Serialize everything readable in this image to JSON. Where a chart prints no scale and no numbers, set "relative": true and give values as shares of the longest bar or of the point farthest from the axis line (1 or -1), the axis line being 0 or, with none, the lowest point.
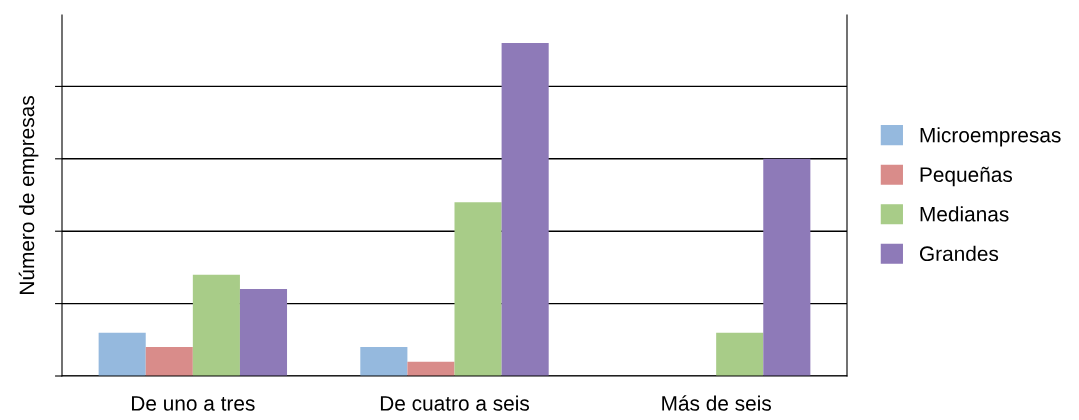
{
  "chart_data": {
    "type": "bar",
    "ylabel": "Número de empresas",
    "relative": true,
    "categories": [
      "De uno a tres",
      "De cuatro a seis",
      "Más de seis"
    ],
    "series": [
      {
        "name": "Microempresas",
        "color": "#95b9de",
        "values": [
          0.13,
          0.087,
          null
        ]
      },
      {
        "name": "Pequeñas",
        "color": "#d98c8a",
        "values": [
          0.087,
          0.043,
          null
        ]
      },
      {
        "name": "Medianas",
        "color": "#a8cc88",
        "values": [
          0.304,
          0.522,
          0.13
        ]
      },
      {
        "name": "Grandes",
        "color": "#8e7ab8",
        "values": [
          0.261,
          1,
          0.652
        ]
      }
    ],
    "grid": "y",
    "legend": "right"
  }
}
